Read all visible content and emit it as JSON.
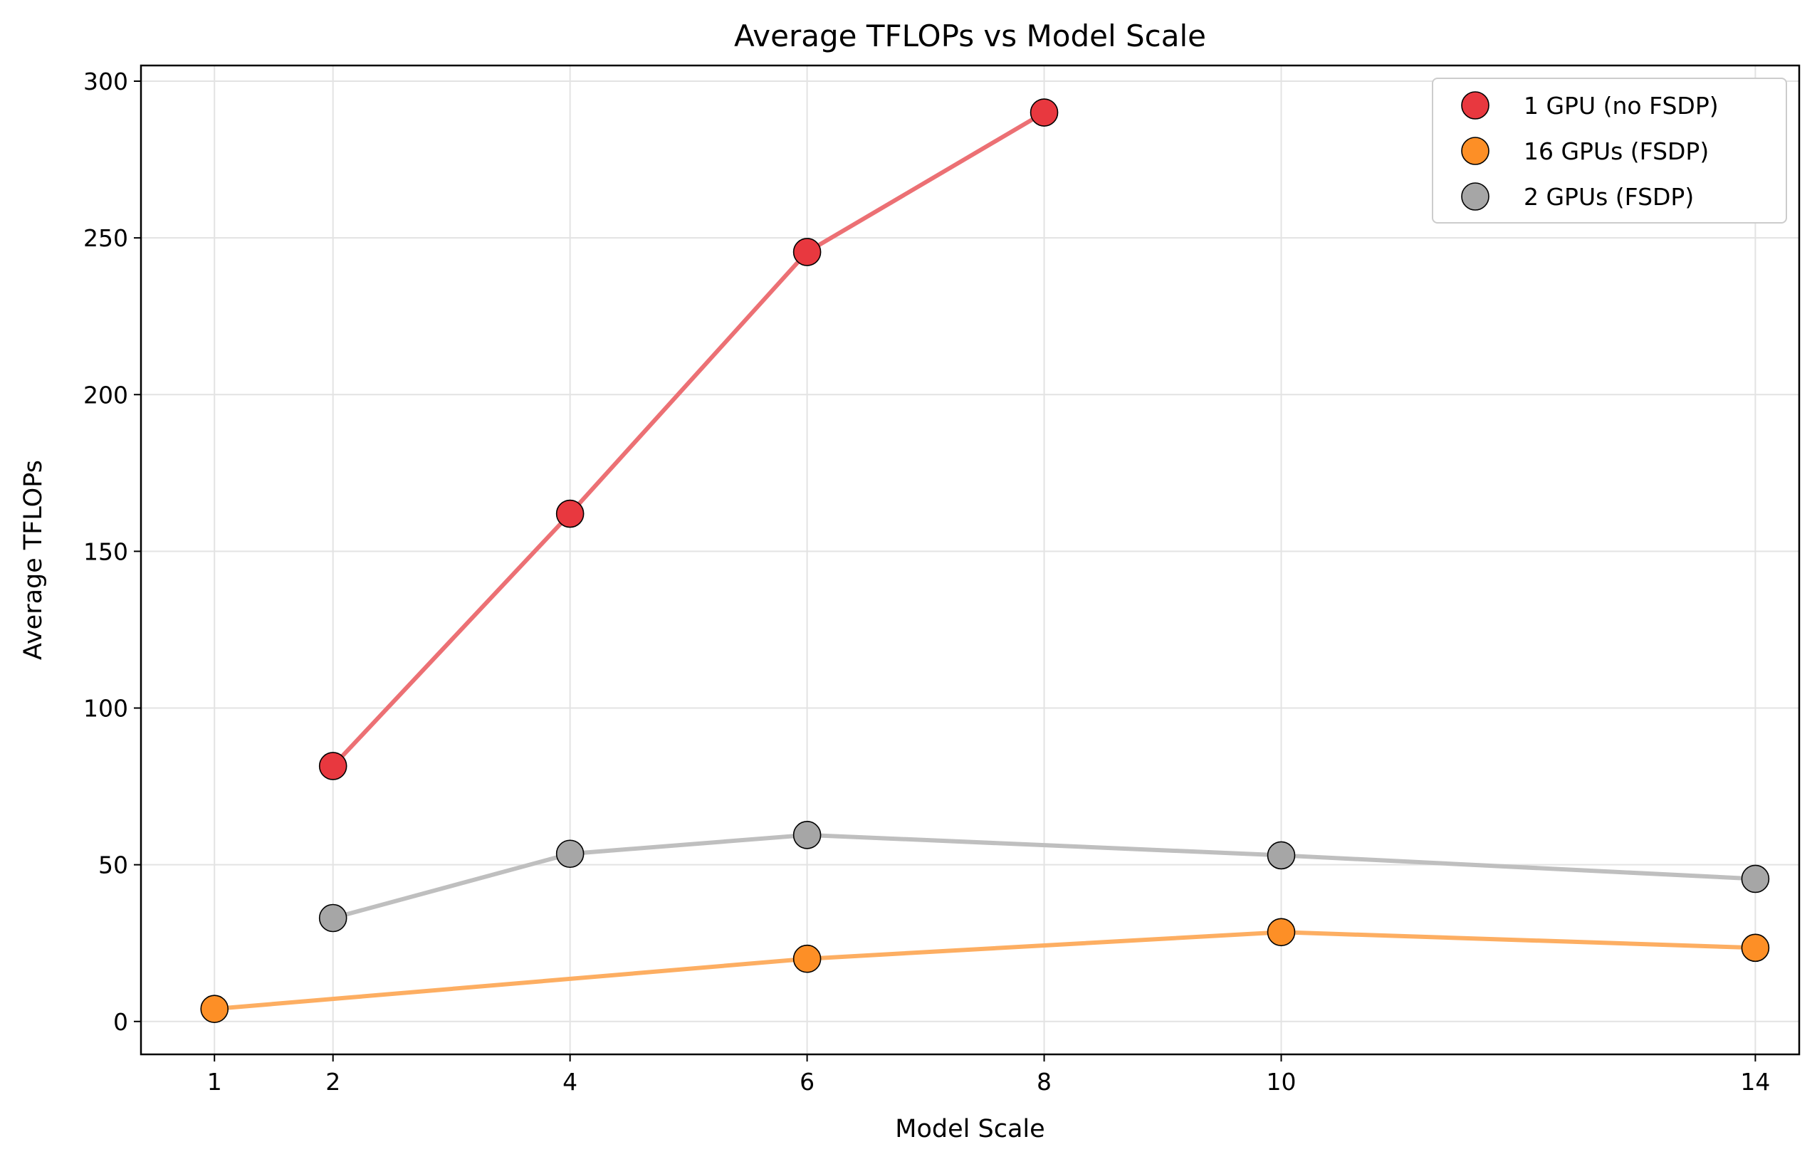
{
  "chart_data": {
    "type": "line",
    "title": "Average TFLOPs vs Model Scale",
    "xlabel": "Model Scale",
    "ylabel": "Average TFLOPs",
    "xlim": [
      0.38,
      14.37
    ],
    "ylim": [
      -10.5,
      305
    ],
    "x_ticks": [
      1,
      2,
      4,
      6,
      8,
      10,
      14
    ],
    "y_ticks": [
      0,
      50,
      100,
      150,
      200,
      250,
      300
    ],
    "grid": true,
    "legend_position": "top-right",
    "series": [
      {
        "name": "1 GPU (no FSDP)",
        "color": "#e8383f",
        "line_color": "#ec7074",
        "x": [
          2,
          4,
          6,
          8
        ],
        "y": [
          81.5,
          162,
          245.5,
          290
        ]
      },
      {
        "name": "16 GPUs (FSDP)",
        "color": "#fd8f26",
        "line_color": "#fdae62",
        "x": [
          1,
          6,
          10,
          14
        ],
        "y": [
          4,
          20,
          28.5,
          23.5
        ]
      },
      {
        "name": "2 GPUs (FSDP)",
        "color": "#a6a6a6",
        "line_color": "#bfbfbf",
        "x": [
          2,
          4,
          6,
          10,
          14
        ],
        "y": [
          33,
          53.5,
          59.5,
          53,
          45.5
        ]
      }
    ]
  }
}
